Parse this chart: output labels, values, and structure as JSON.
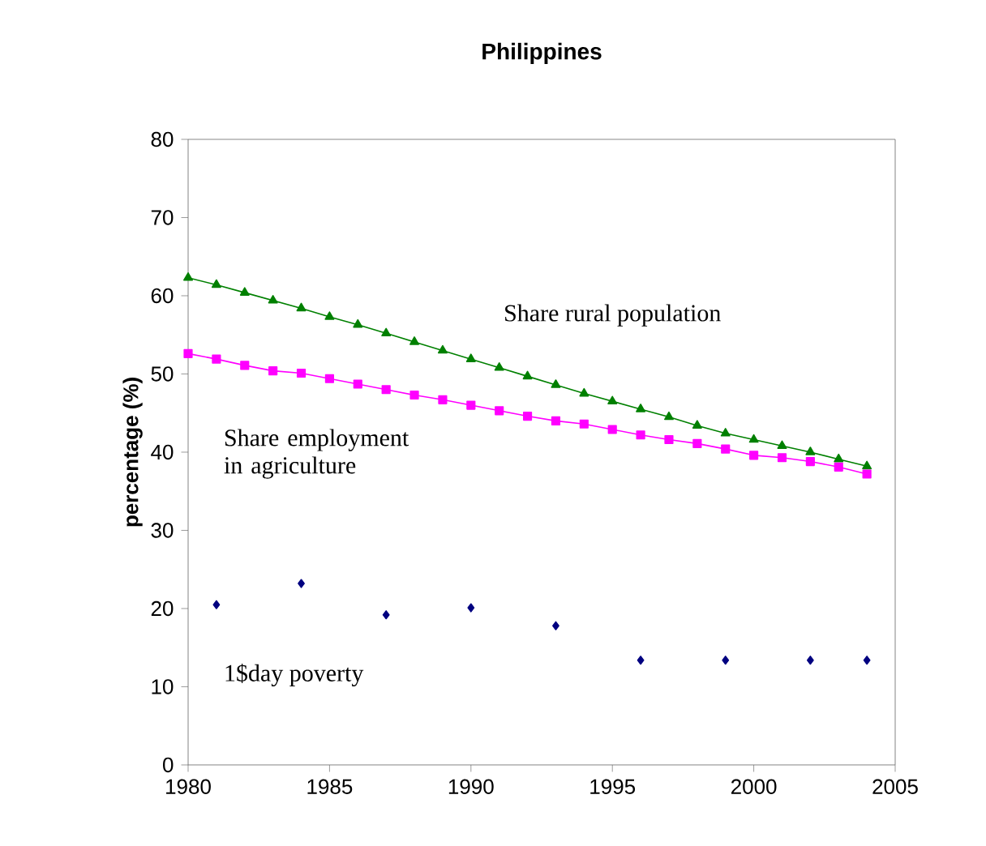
{
  "chart_data": {
    "type": "line",
    "title": "Philippines",
    "ylabel": "percentage (%)",
    "xlim": [
      1980,
      2005
    ],
    "xticks": [
      1980,
      1985,
      1990,
      1995,
      2000,
      2005
    ],
    "ylim": [
      0,
      80
    ],
    "yticks": [
      0,
      10,
      20,
      30,
      40,
      50,
      60,
      70,
      80
    ],
    "grid": false,
    "legend": false,
    "series": [
      {
        "name": "Share rural population",
        "color": "#008000",
        "marker": "triangle",
        "line_style": "solid",
        "x": [
          1980,
          1981,
          1982,
          1983,
          1984,
          1985,
          1986,
          1987,
          1988,
          1989,
          1990,
          1991,
          1992,
          1993,
          1994,
          1995,
          1996,
          1997,
          1998,
          1999,
          2000,
          2001,
          2002,
          2003,
          2004
        ],
        "values": [
          62.3,
          61.4,
          60.4,
          59.4,
          58.4,
          57.3,
          56.3,
          55.2,
          54.1,
          53.0,
          51.9,
          50.8,
          49.7,
          48.6,
          47.5,
          46.5,
          45.5,
          44.5,
          43.4,
          42.4,
          41.6,
          40.8,
          40.0,
          39.1,
          38.2
        ]
      },
      {
        "name": "Share employment in agriculture",
        "color": "#ff00ff",
        "marker": "square",
        "line_style": "solid",
        "x": [
          1980,
          1981,
          1982,
          1983,
          1984,
          1985,
          1986,
          1987,
          1988,
          1989,
          1990,
          1991,
          1992,
          1993,
          1994,
          1995,
          1996,
          1997,
          1998,
          1999,
          2000,
          2001,
          2002,
          2003,
          2004
        ],
        "values": [
          52.6,
          51.9,
          51.1,
          50.4,
          50.1,
          49.4,
          48.7,
          48.0,
          47.3,
          46.7,
          46.0,
          45.3,
          44.6,
          44.0,
          43.6,
          42.9,
          42.2,
          41.6,
          41.1,
          40.4,
          39.6,
          39.3,
          38.8,
          38.1,
          37.2
        ]
      },
      {
        "name": "1$day poverty",
        "color": "#000080",
        "marker": "diamond",
        "type": "scatter",
        "x": [
          1981,
          1984,
          1987,
          1990,
          1993,
          1996,
          1999,
          2002,
          2004
        ],
        "values": [
          20.5,
          23.2,
          19.2,
          20.1,
          17.8,
          13.4,
          13.4,
          13.4,
          13.4
        ]
      }
    ]
  }
}
